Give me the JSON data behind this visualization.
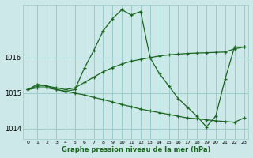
{
  "title": "Graphe pression niveau de la mer (hPa)",
  "bg_color": "#cce8e8",
  "grid_color": "#99cccc",
  "line_color": "#1a6620",
  "xlim": [
    -0.5,
    23.5
  ],
  "ylim": [
    1013.7,
    1017.5
  ],
  "yticks": [
    1014,
    1015,
    1016
  ],
  "xticks": [
    0,
    1,
    2,
    3,
    4,
    5,
    6,
    7,
    8,
    9,
    10,
    11,
    12,
    13,
    14,
    15,
    16,
    17,
    18,
    19,
    20,
    21,
    22,
    23
  ],
  "series": [
    {
      "x": [
        0,
        1,
        2,
        3,
        4,
        5,
        6,
        7,
        8,
        9,
        10,
        11,
        12,
        13,
        14,
        15,
        16,
        17,
        18,
        19,
        20,
        21,
        22,
        23
      ],
      "y": [
        1015.1,
        1015.25,
        1015.2,
        1015.1,
        1015.05,
        1015.1,
        1015.7,
        1016.2,
        1016.75,
        1017.1,
        1017.35,
        1017.2,
        1017.3,
        1016.0,
        1015.55,
        1015.2,
        1014.85,
        1014.6,
        1014.35,
        1014.05,
        1014.35,
        1015.4,
        1016.3,
        1016.3
      ]
    },
    {
      "x": [
        0,
        1,
        2,
        3,
        4,
        5,
        6,
        7,
        8,
        9,
        10,
        11,
        12,
        13,
        14,
        15,
        16,
        17,
        18,
        19,
        20,
        21,
        22,
        23
      ],
      "y": [
        1015.1,
        1015.2,
        1015.2,
        1015.15,
        1015.1,
        1015.15,
        1015.3,
        1015.45,
        1015.6,
        1015.72,
        1015.82,
        1015.9,
        1015.95,
        1016.0,
        1016.05,
        1016.08,
        1016.1,
        1016.12,
        1016.13,
        1016.14,
        1016.15,
        1016.16,
        1016.25,
        1016.3
      ]
    },
    {
      "x": [
        0,
        1,
        2,
        3,
        4,
        5,
        6,
        7,
        8,
        9,
        10,
        11,
        12,
        13,
        14,
        15,
        16,
        17,
        18,
        19,
        20,
        21,
        22,
        23
      ],
      "y": [
        1015.1,
        1015.15,
        1015.15,
        1015.1,
        1015.05,
        1015.0,
        1014.95,
        1014.88,
        1014.82,
        1014.75,
        1014.68,
        1014.62,
        1014.55,
        1014.5,
        1014.45,
        1014.4,
        1014.35,
        1014.3,
        1014.28,
        1014.25,
        1014.22,
        1014.2,
        1014.18,
        1014.3
      ]
    }
  ],
  "xlabel_fontsize": 6,
  "ytick_fontsize": 6,
  "xtick_fontsize": 4.5,
  "linewidth": 0.9,
  "markersize": 3.5,
  "markeredgewidth": 0.9
}
